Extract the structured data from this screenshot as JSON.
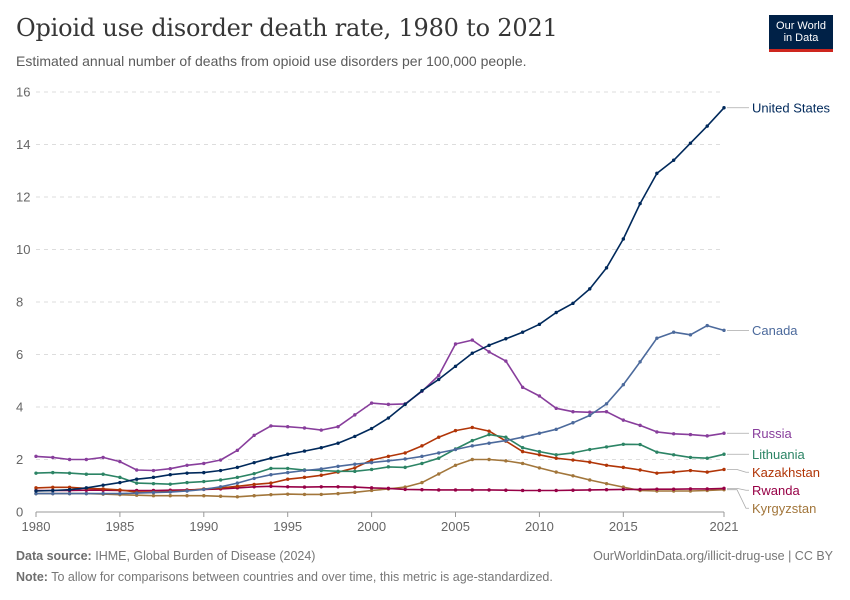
{
  "header": {
    "title": "Opioid use disorder death rate, 1980 to 2021",
    "subtitle": "Estimated annual number of deaths from opioid use disorders per 100,000 people.",
    "logo_line1": "Our World",
    "logo_line2": "in Data"
  },
  "footer": {
    "source_label": "Data source:",
    "source_text": "IHME, Global Burden of Disease (2024)",
    "url": "OurWorldinData.org/illicit-drug-use | CC BY",
    "note_label": "Note:",
    "note_text": "To allow for comparisons between countries and over time, this metric is age-standardized."
  },
  "chart_data": {
    "type": "line",
    "title": "Opioid use disorder death rate, 1980 to 2021",
    "subtitle": "Estimated annual number of deaths from opioid use disorders per 100,000 people.",
    "xlabel": "",
    "ylabel": "",
    "xlim": [
      1980,
      2021
    ],
    "ylim": [
      0,
      16
    ],
    "x_ticks": [
      1980,
      1985,
      1990,
      1995,
      2000,
      2005,
      2010,
      2015,
      2021
    ],
    "y_ticks": [
      0,
      2,
      4,
      6,
      8,
      10,
      12,
      14,
      16
    ],
    "grid": "horizontal dashed",
    "legend": "inline labels at right end of lines",
    "x": [
      1980,
      1981,
      1982,
      1983,
      1984,
      1985,
      1986,
      1987,
      1988,
      1989,
      1990,
      1991,
      1992,
      1993,
      1994,
      1995,
      1996,
      1997,
      1998,
      1999,
      2000,
      2001,
      2002,
      2003,
      2004,
      2005,
      2006,
      2007,
      2008,
      2009,
      2010,
      2011,
      2012,
      2013,
      2014,
      2015,
      2016,
      2017,
      2018,
      2019,
      2020,
      2021
    ],
    "series": [
      {
        "name": "United States",
        "color": "#00295b",
        "values": [
          0.8,
          0.82,
          0.85,
          0.92,
          1.02,
          1.12,
          1.25,
          1.32,
          1.42,
          1.48,
          1.5,
          1.58,
          1.7,
          1.88,
          2.05,
          2.2,
          2.32,
          2.45,
          2.62,
          2.88,
          3.18,
          3.58,
          4.1,
          4.62,
          5.05,
          5.55,
          6.05,
          6.35,
          6.6,
          6.85,
          7.15,
          7.6,
          7.95,
          8.5,
          9.3,
          10.4,
          11.75,
          12.9,
          13.4,
          14.05,
          14.7,
          15.4
        ]
      },
      {
        "name": "Canada",
        "color": "#4c6a9c",
        "values": [
          0.7,
          0.7,
          0.7,
          0.7,
          0.7,
          0.7,
          0.72,
          0.74,
          0.76,
          0.8,
          0.86,
          0.96,
          1.1,
          1.28,
          1.42,
          1.5,
          1.58,
          1.64,
          1.74,
          1.82,
          1.88,
          1.95,
          2.02,
          2.12,
          2.25,
          2.38,
          2.52,
          2.62,
          2.72,
          2.85,
          3.0,
          3.15,
          3.4,
          3.68,
          4.12,
          4.85,
          5.72,
          6.62,
          6.85,
          6.75,
          7.1,
          6.92
        ]
      },
      {
        "name": "Russia",
        "color": "#883e9c",
        "values": [
          2.12,
          2.08,
          2.0,
          2.0,
          2.08,
          1.92,
          1.6,
          1.58,
          1.65,
          1.78,
          1.85,
          1.98,
          2.35,
          2.92,
          3.28,
          3.25,
          3.2,
          3.12,
          3.25,
          3.7,
          4.15,
          4.1,
          4.12,
          4.6,
          5.2,
          6.4,
          6.55,
          6.1,
          5.75,
          4.75,
          4.42,
          3.95,
          3.82,
          3.8,
          3.82,
          3.5,
          3.3,
          3.05,
          2.98,
          2.95,
          2.9,
          3.0
        ]
      },
      {
        "name": "Lithuania",
        "color": "#2c8465",
        "values": [
          1.48,
          1.5,
          1.48,
          1.44,
          1.44,
          1.32,
          1.1,
          1.08,
          1.06,
          1.12,
          1.16,
          1.22,
          1.32,
          1.46,
          1.66,
          1.66,
          1.6,
          1.58,
          1.55,
          1.55,
          1.62,
          1.72,
          1.7,
          1.85,
          2.05,
          2.4,
          2.72,
          2.95,
          2.85,
          2.45,
          2.3,
          2.18,
          2.25,
          2.38,
          2.48,
          2.58,
          2.57,
          2.28,
          2.18,
          2.08,
          2.05,
          2.2
        ]
      },
      {
        "name": "Kazakhstan",
        "color": "#b13507",
        "values": [
          0.92,
          0.94,
          0.94,
          0.9,
          0.88,
          0.84,
          0.76,
          0.76,
          0.78,
          0.82,
          0.88,
          0.92,
          0.98,
          1.05,
          1.1,
          1.25,
          1.32,
          1.4,
          1.52,
          1.68,
          1.98,
          2.12,
          2.25,
          2.52,
          2.85,
          3.1,
          3.22,
          3.08,
          2.7,
          2.3,
          2.18,
          2.05,
          1.98,
          1.9,
          1.78,
          1.7,
          1.6,
          1.48,
          1.52,
          1.58,
          1.52,
          1.62
        ]
      },
      {
        "name": "Rwanda",
        "color": "#970046",
        "values": [
          0.82,
          0.82,
          0.82,
          0.83,
          0.83,
          0.82,
          0.82,
          0.82,
          0.83,
          0.84,
          0.86,
          0.88,
          0.92,
          0.96,
          0.98,
          0.96,
          0.95,
          0.96,
          0.96,
          0.95,
          0.92,
          0.9,
          0.86,
          0.85,
          0.84,
          0.84,
          0.84,
          0.84,
          0.83,
          0.82,
          0.82,
          0.82,
          0.83,
          0.84,
          0.85,
          0.86,
          0.86,
          0.87,
          0.87,
          0.88,
          0.88,
          0.9
        ]
      },
      {
        "name": "Kyrgyzstan",
        "color": "#a2763b",
        "values": [
          0.7,
          0.7,
          0.7,
          0.7,
          0.68,
          0.66,
          0.64,
          0.62,
          0.62,
          0.62,
          0.62,
          0.6,
          0.58,
          0.62,
          0.66,
          0.68,
          0.67,
          0.67,
          0.7,
          0.75,
          0.82,
          0.88,
          0.95,
          1.12,
          1.45,
          1.78,
          2.0,
          2.0,
          1.95,
          1.85,
          1.68,
          1.52,
          1.38,
          1.22,
          1.08,
          0.95,
          0.82,
          0.8,
          0.8,
          0.8,
          0.82,
          0.85
        ]
      }
    ]
  }
}
